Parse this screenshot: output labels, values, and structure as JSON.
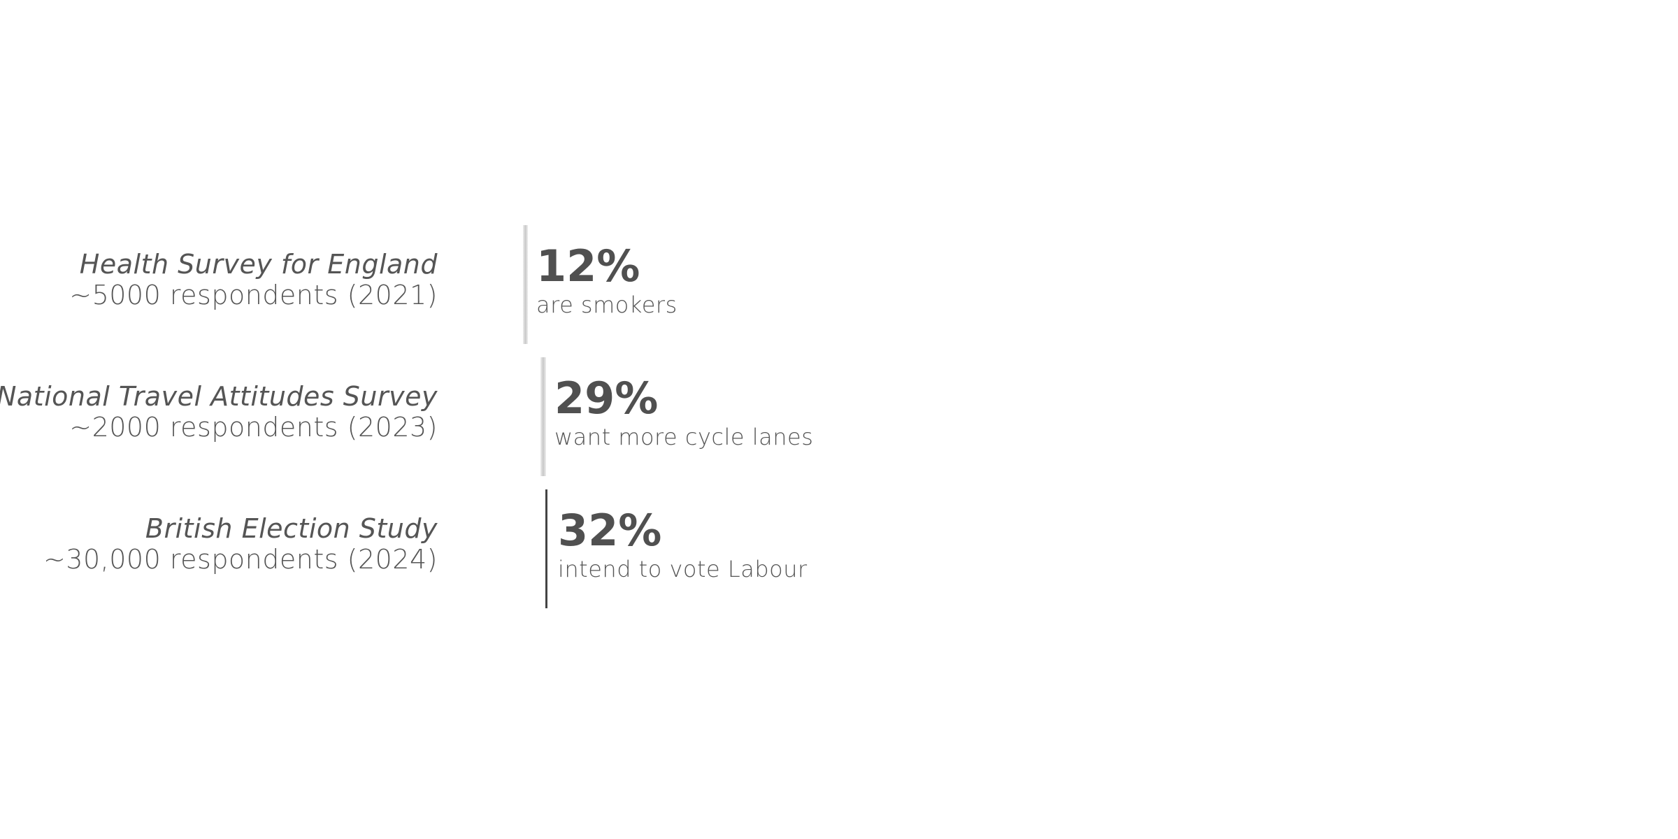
{
  "rows": [
    {
      "source": "Health Survey for England",
      "respondents": "~5000 respondents (2021)",
      "stat": "12%",
      "description": "are smokers"
    },
    {
      "source": "National Travel Attitudes Survey",
      "respondents": "~2000 respondents (2023)",
      "stat": "29%",
      "description": "want more cycle lanes"
    },
    {
      "source": "British Election Study",
      "respondents": "~30,000 respondents (2024)",
      "stat": "32%",
      "description": "intend to vote Labour"
    }
  ]
}
